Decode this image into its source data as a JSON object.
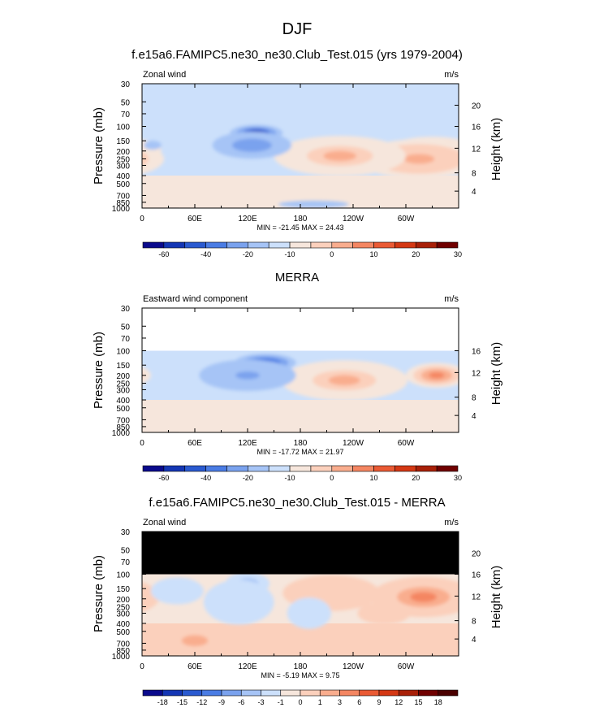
{
  "page_title": "DJF",
  "chart_data": [
    {
      "type": "heatmap",
      "title": "f.e15a6.FAMIPC5.ne30_ne30.Club_Test.015 (yrs 1979-2004)",
      "left_label": "Zonal wind",
      "units": "m/s",
      "ylabel": "Pressure (mb)",
      "ylabel_right": "Height (km)",
      "x_ticks": [
        "0",
        "60E",
        "120E",
        "180",
        "120W",
        "60W"
      ],
      "y_ticks": [
        "30",
        "50",
        "70",
        "100",
        "150",
        "200",
        "250",
        "300",
        "400",
        "500",
        "700",
        "850",
        "1000"
      ],
      "height_ticks": [
        "20",
        "16",
        "12",
        "8",
        "4"
      ],
      "stats": "MIN = -21.45  MAX = 24.43",
      "colorbar_labels": [
        "-60",
        "-40",
        "-20",
        "-10",
        "0",
        "10",
        "20",
        "30"
      ],
      "colors": [
        "#0a0a8c",
        "#1436b4",
        "#2a5ad0",
        "#4a7ce4",
        "#7aa2ee",
        "#a6c4f6",
        "#cce0fb",
        "#f6e6dc",
        "#fbd0bc",
        "#f9ad8e",
        "#f48662",
        "#ea5a34",
        "#d43814",
        "#a82008",
        "#700000"
      ],
      "masked_above_100mb": false,
      "blobs": [
        {
          "lon": 330,
          "p": 200,
          "rx": 52,
          "ry": 32,
          "value": 24
        },
        {
          "lon": 315,
          "p": 250,
          "rx": 70,
          "ry": 44,
          "value": 14
        },
        {
          "lon": 230,
          "p": 200,
          "rx": 55,
          "ry": 30,
          "value": 24
        },
        {
          "lon": 225,
          "p": 230,
          "rx": 75,
          "ry": 45,
          "value": 12
        },
        {
          "lon": 130,
          "p": 120,
          "rx": 30,
          "ry": 18,
          "value": -21
        },
        {
          "lon": 125,
          "p": 170,
          "rx": 45,
          "ry": 30,
          "value": -10
        },
        {
          "lon": 12,
          "p": 170,
          "rx": 10,
          "ry": 10,
          "value": -5
        },
        {
          "lon": 100,
          "p": 700,
          "rx": 80,
          "ry": 16,
          "value": 6
        },
        {
          "lon": 195,
          "p": 900,
          "rx": 40,
          "ry": 8,
          "value": -3
        }
      ]
    },
    {
      "type": "heatmap",
      "title": "MERRA",
      "left_label": "Eastward wind component",
      "units": "m/s",
      "ylabel": "Pressure (mb)",
      "ylabel_right": "Height (km)",
      "x_ticks": [
        "0",
        "60E",
        "120E",
        "180",
        "120W",
        "60W"
      ],
      "y_ticks": [
        "30",
        "50",
        "70",
        "100",
        "150",
        "200",
        "250",
        "300",
        "400",
        "500",
        "700",
        "850",
        "1000"
      ],
      "height_ticks": [
        "16",
        "12",
        "8",
        "4"
      ],
      "stats": "MIN = -17.72  MAX = 21.97",
      "colorbar_labels": [
        "-60",
        "-40",
        "-20",
        "-10",
        "0",
        "10",
        "20",
        "30"
      ],
      "colors": [
        "#0a0a8c",
        "#1436b4",
        "#2a5ad0",
        "#4a7ce4",
        "#7aa2ee",
        "#a6c4f6",
        "#cce0fb",
        "#f6e6dc",
        "#fbd0bc",
        "#f9ad8e",
        "#f48662",
        "#ea5a34",
        "#d43814",
        "#a82008",
        "#700000"
      ],
      "masked_above_100mb": "white",
      "blobs": [
        {
          "lon": 235,
          "p": 200,
          "rx": 45,
          "ry": 28,
          "value": 22
        },
        {
          "lon": 230,
          "p": 230,
          "rx": 72,
          "ry": 45,
          "value": 12
        },
        {
          "lon": 335,
          "p": 200,
          "rx": 35,
          "ry": 28,
          "value": 14
        },
        {
          "lon": 140,
          "p": 140,
          "rx": 35,
          "ry": 20,
          "value": -15
        },
        {
          "lon": 120,
          "p": 200,
          "rx": 55,
          "ry": 35,
          "value": -6
        },
        {
          "lon": 100,
          "p": 750,
          "rx": 90,
          "ry": 12,
          "value": 4
        }
      ]
    },
    {
      "type": "heatmap",
      "title": "f.e15a6.FAMIPC5.ne30_ne30.Club_Test.015 - MERRA",
      "left_label": "Zonal wind",
      "units": "m/s",
      "ylabel": "Pressure (mb)",
      "ylabel_right": "Height (km)",
      "x_ticks": [
        "0",
        "60E",
        "120E",
        "180",
        "120W",
        "60W"
      ],
      "y_ticks": [
        "30",
        "50",
        "70",
        "100",
        "150",
        "200",
        "250",
        "300",
        "400",
        "500",
        "700",
        "850",
        "1000"
      ],
      "height_ticks": [
        "20",
        "16",
        "12",
        "8",
        "4"
      ],
      "stats": "MIN = -5.19  MAX = 9.75",
      "colorbar_labels": [
        "-18",
        "-15",
        "-12",
        "-9",
        "-6",
        "-3",
        "-1",
        "0",
        "1",
        "3",
        "6",
        "9",
        "12",
        "15",
        "18"
      ],
      "colors": [
        "#0a0a8c",
        "#1436b4",
        "#2a5ad0",
        "#4a7ce4",
        "#7aa2ee",
        "#a6c4f6",
        "#cce0fb",
        "#f6e6dc",
        "#fbd0bc",
        "#f9ad8e",
        "#f48662",
        "#ea5a34",
        "#d43814",
        "#a82008",
        "#700000",
        "#4a0000"
      ],
      "masked_above_100mb": "black",
      "blobs": [
        {
          "lon": 340,
          "p": 180,
          "rx": 35,
          "ry": 24,
          "value": 9
        },
        {
          "lon": 320,
          "p": 190,
          "rx": 60,
          "ry": 45,
          "value": 4
        },
        {
          "lon": 215,
          "p": 170,
          "rx": 55,
          "ry": 40,
          "value": 2
        },
        {
          "lon": 120,
          "p": 130,
          "rx": 25,
          "ry": 25,
          "value": -4
        },
        {
          "lon": 110,
          "p": 220,
          "rx": 40,
          "ry": 50,
          "value": -2
        },
        {
          "lon": 40,
          "p": 160,
          "rx": 30,
          "ry": 30,
          "value": -1.5
        },
        {
          "lon": 190,
          "p": 300,
          "rx": 25,
          "ry": 35,
          "value": -2
        },
        {
          "lon": 275,
          "p": 300,
          "rx": 30,
          "ry": 25,
          "value": 2
        },
        {
          "lon": 60,
          "p": 650,
          "rx": 30,
          "ry": 25,
          "value": 3
        }
      ]
    }
  ]
}
